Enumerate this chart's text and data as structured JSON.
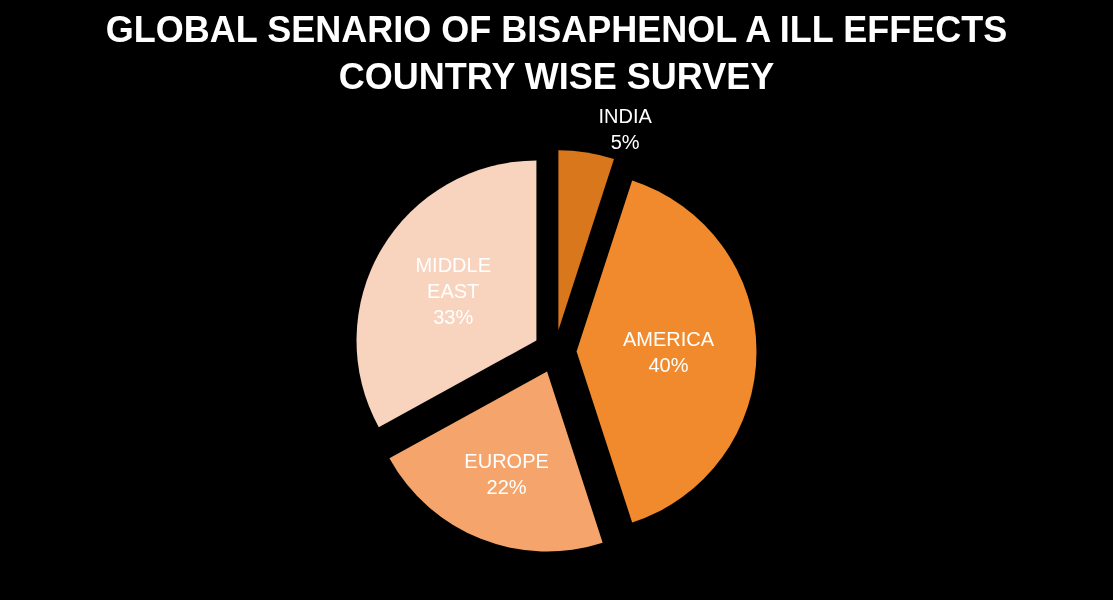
{
  "chart_data": {
    "type": "pie",
    "title": "GLOBAL SENARIO OF BISAPHENOL A ILL EFFECTS COUNTRY WISE SURVEY",
    "categories": [
      "INDIA",
      "AMERICA",
      "EUROPE",
      "MIDDLE EAST"
    ],
    "values": [
      5,
      40,
      22,
      33
    ],
    "value_labels": [
      "5%",
      "40%",
      "22%",
      "33%"
    ],
    "colors": [
      "#d9771c",
      "#f08a2c",
      "#f5a56b",
      "#f8d3bd"
    ],
    "legend": false
  }
}
